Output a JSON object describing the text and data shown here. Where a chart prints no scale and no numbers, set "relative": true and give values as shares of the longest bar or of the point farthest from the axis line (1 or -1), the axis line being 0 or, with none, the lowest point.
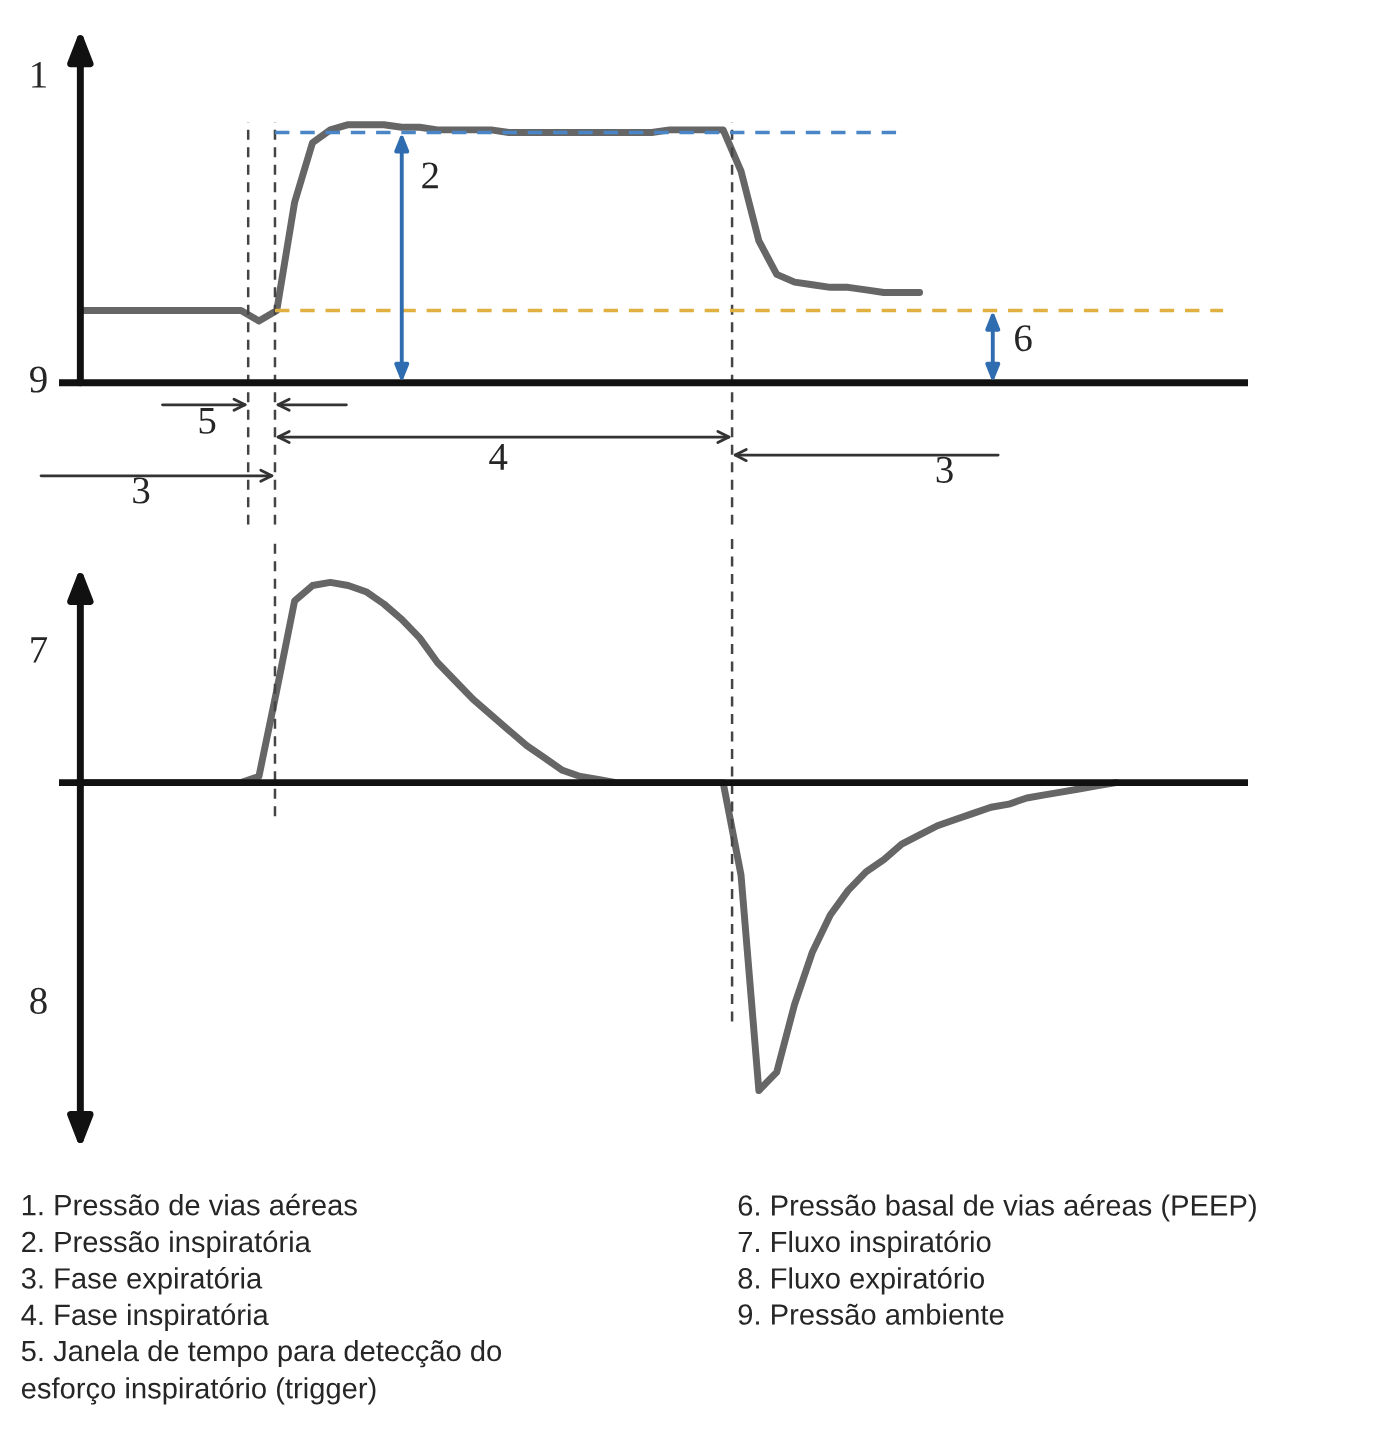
{
  "chart_data": [
    {
      "type": "line",
      "relative": true,
      "marker": "none",
      "line_style": "solid",
      "categories": [
        null,
        null,
        null,
        null,
        null,
        null,
        null,
        null,
        null,
        null,
        null,
        null,
        null,
        null,
        null,
        null,
        null,
        null,
        null,
        null,
        null,
        null,
        null,
        null,
        null,
        null,
        null,
        null,
        null,
        null,
        null,
        null,
        null,
        null,
        null,
        null,
        null,
        null,
        null,
        null,
        null,
        null,
        null,
        null,
        null,
        null,
        null,
        null,
        null,
        null,
        null,
        null,
        null,
        null,
        null,
        null,
        null,
        null,
        null,
        null,
        null,
        null,
        null,
        null,
        null
      ],
      "series": [
        {
          "color": "#666666",
          "values": [
            0.28,
            0.28,
            0.28,
            0.28,
            0.28,
            0.28,
            0.28,
            0.28,
            0.28,
            0.28,
            0.24,
            0.28,
            0.7,
            0.93,
            0.98,
            1.0,
            1.0,
            1.0,
            0.99,
            0.99,
            0.98,
            0.98,
            0.98,
            0.98,
            0.97,
            0.97,
            0.97,
            0.97,
            0.97,
            0.97,
            0.97,
            0.97,
            0.97,
            0.98,
            0.98,
            0.98,
            0.98,
            0.82,
            0.55,
            0.42,
            0.39,
            0.38,
            0.37,
            0.37,
            0.36,
            0.35,
            0.35,
            0.35,
            null,
            null,
            null,
            null,
            null,
            null,
            null,
            null,
            null,
            null,
            null,
            null,
            null,
            null,
            null,
            null,
            null
          ]
        }
      ],
      "ref_lines": [
        {
          "axis": "y",
          "value": 0.97,
          "color": "#4a86c5",
          "line_style": "dashed"
        },
        {
          "axis": "y",
          "value": 0.28,
          "color": "#e0b040",
          "line_style": "dashed"
        }
      ],
      "annotations": [
        "1",
        "9",
        "2",
        "6",
        "5",
        "4",
        "3",
        "3"
      ]
    },
    {
      "type": "line",
      "relative": true,
      "marker": "none",
      "line_style": "solid",
      "categories": [
        null,
        null,
        null,
        null,
        null,
        null,
        null,
        null,
        null,
        null,
        null,
        null,
        null,
        null,
        null,
        null,
        null,
        null,
        null,
        null,
        null,
        null,
        null,
        null,
        null,
        null,
        null,
        null,
        null,
        null,
        null,
        null,
        null,
        null,
        null,
        null,
        null,
        null,
        null,
        null,
        null,
        null,
        null,
        null,
        null,
        null,
        null,
        null,
        null,
        null,
        null,
        null,
        null,
        null,
        null,
        null,
        null,
        null,
        null,
        null,
        null,
        null,
        null,
        null,
        null
      ],
      "series": [
        {
          "color": "#666666",
          "values": [
            0,
            0,
            0,
            0,
            0,
            0,
            0,
            0,
            0,
            0,
            0.02,
            0.3,
            0.59,
            0.64,
            0.65,
            0.64,
            0.62,
            0.58,
            0.53,
            0.47,
            0.39,
            0.33,
            0.27,
            0.22,
            0.17,
            0.12,
            0.08,
            0.04,
            0.02,
            0.01,
            0,
            0,
            0,
            0,
            0,
            0,
            0,
            -0.3,
            -1,
            -0.94,
            -0.72,
            -0.55,
            -0.43,
            -0.35,
            -0.29,
            -0.25,
            -0.2,
            -0.17,
            -0.14,
            -0.12,
            -0.1,
            -0.08,
            -0.07,
            -0.05,
            -0.04,
            -0.03,
            -0.02,
            -0.01,
            0,
            null,
            null,
            null,
            null,
            null,
            null
          ]
        }
      ],
      "annotations": [
        "7",
        "8",
        "1. Pressão de vias aéreas",
        "2. Pressão inspiratória",
        "3. Fase expiratória",
        "4. Fase inspiratória",
        "5. Janela de tempo para detecção do\nesforço inspiratório (trigger)",
        "6. Pressão basal de vias aéreas (PEEP)",
        "7. Fluxo inspiratório",
        "8. Fluxo expiratório",
        "9. Pressão ambiente"
      ]
    }
  ]
}
